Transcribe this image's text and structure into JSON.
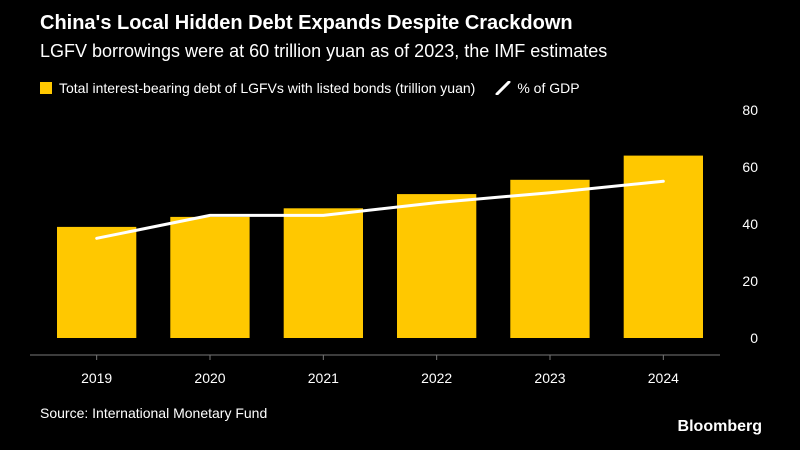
{
  "title": "China's Local Hidden Debt Expands Despite Crackdown",
  "subtitle": "LGFV borrowings were at 60 trillion yuan as of 2023, the IMF estimates",
  "source": "Source: International Monetary Fund",
  "brand": "Bloomberg",
  "colors": {
    "bar": "#FFC800",
    "line": "#FFFFFF",
    "background": "#000000",
    "grid": "#555555"
  },
  "chart_data": {
    "type": "bar",
    "categories": [
      "2019",
      "2020",
      "2021",
      "2022",
      "2023",
      "2024"
    ],
    "series": [
      {
        "name": "Total interest-bearing debt of LGFVs with listed bonds (trillion yuan)",
        "type": "bar",
        "values": [
          39,
          42.5,
          45.5,
          50.5,
          55.5,
          64
        ]
      },
      {
        "name": "% of GDP",
        "type": "line",
        "values": [
          35,
          43,
          43,
          47.5,
          51,
          55
        ]
      }
    ],
    "ylim": [
      0,
      80
    ],
    "yticks": [
      0,
      20,
      40,
      60,
      80
    ],
    "y_axis_side": "right",
    "legend_position": "top-left",
    "grid": false
  }
}
